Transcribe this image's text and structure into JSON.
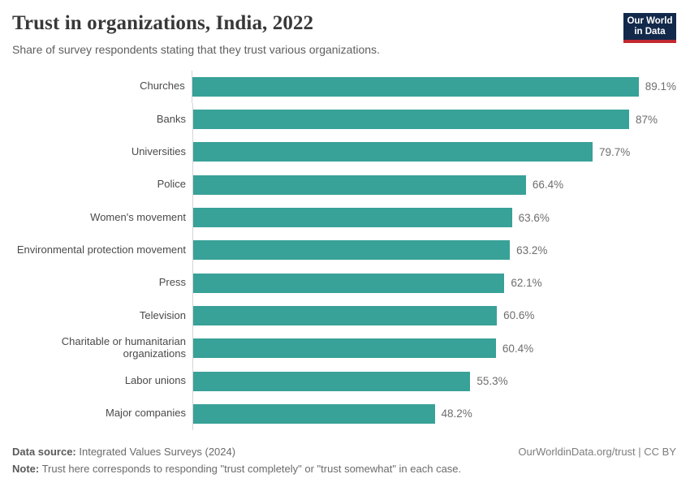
{
  "header": {
    "title": "Trust in organizations, India, 2022",
    "subtitle": "Share of survey respondents stating that they trust various organizations."
  },
  "logo": {
    "line1": "Our World",
    "line2": "in Data",
    "bg_color": "#12294b",
    "stripe_color": "#c2282f",
    "text_color": "#ffffff"
  },
  "chart_data": {
    "type": "bar",
    "orientation": "horizontal",
    "title": "Trust in organizations, India, 2022",
    "xlabel": "",
    "ylabel": "",
    "xlim": [
      0,
      100
    ],
    "grid": false,
    "legend": false,
    "bar_color": "#38a198",
    "axis_line_color": "#d4d4d4",
    "categories": [
      "Churches",
      "Banks",
      "Universities",
      "Police",
      "Women's movement",
      "Environmental protection movement",
      "Press",
      "Television",
      "Charitable or humanitarian organizations",
      "Labor unions",
      "Major companies"
    ],
    "values": [
      89.1,
      87,
      79.7,
      66.4,
      63.6,
      63.2,
      62.1,
      60.6,
      60.4,
      55.3,
      48.2
    ],
    "value_labels": [
      "89.1%",
      "87%",
      "79.7%",
      "66.4%",
      "63.6%",
      "63.2%",
      "62.1%",
      "60.6%",
      "60.4%",
      "55.3%",
      "48.2%"
    ]
  },
  "footer": {
    "data_source_label": "Data source:",
    "data_source_value": " Integrated Values Surveys (2024)",
    "note_label": "Note:",
    "note_value": " Trust here corresponds to responding \"trust completely\" or \"trust somewhat\" in each case.",
    "credit": "OurWorldinData.org/trust | CC BY"
  }
}
